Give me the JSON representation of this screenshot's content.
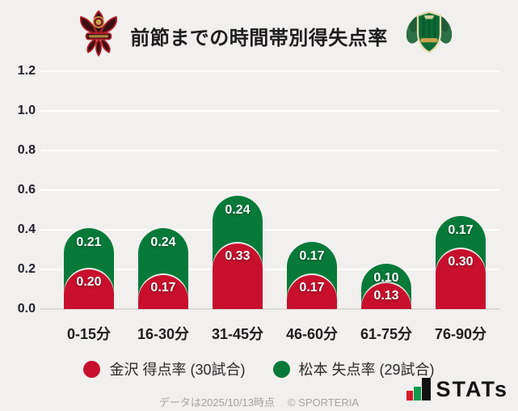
{
  "header": {
    "title": "前節までの時間帯別得失点率",
    "home_logo": "zweigen-kanazawa-crest",
    "away_logo": "matsumoto-yamaga-crest"
  },
  "chart_data": {
    "type": "bar",
    "stacked": true,
    "title": "前節までの時間帯別得失点率",
    "categories": [
      "0-15分",
      "16-30分",
      "31-45分",
      "46-60分",
      "61-75分",
      "76-90分"
    ],
    "series": [
      {
        "name": "金沢 得点率 (30試合)",
        "color": "#c8102e",
        "values": [
          0.2,
          0.17,
          0.33,
          0.17,
          0.13,
          0.3
        ]
      },
      {
        "name": "松本 失点率 (29試合)",
        "color": "#077a39",
        "values": [
          0.21,
          0.24,
          0.24,
          0.17,
          0.1,
          0.17
        ]
      }
    ],
    "xlabel": "",
    "ylabel": "",
    "ylim": [
      0,
      1.2
    ],
    "yticks": [
      0.0,
      0.2,
      0.4,
      0.6,
      0.8,
      1.0,
      1.2
    ],
    "grid": true,
    "value_labels": true,
    "legend_position": "bottom"
  },
  "footer": {
    "note_date": "データは2025/10/13時点",
    "copyright": "© SPORTERIA",
    "brand": "STATs"
  },
  "colors": {
    "background": "#f1f0ee",
    "gridline": "#ffffff",
    "baseline": "#dcdad6",
    "kanazawa_red": "#c8102e",
    "matsumoto_green": "#077a39"
  }
}
